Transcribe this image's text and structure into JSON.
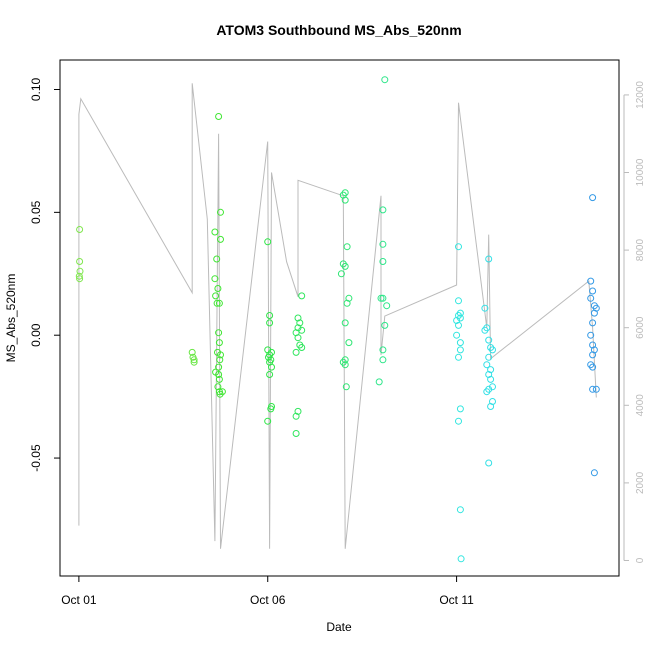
{
  "chart_data": {
    "type": "scatter",
    "title": "ATOM3 Southbound MS_Abs_520nm",
    "xlabel": "Date",
    "ylabel": "MS_Abs_520nm",
    "x_ticks": [
      {
        "label": "Oct 01",
        "value": 0
      },
      {
        "label": "Oct 06",
        "value": 5
      },
      {
        "label": "Oct 11",
        "value": 10
      }
    ],
    "y_ticks": [
      -0.05,
      0.0,
      0.05,
      0.1
    ],
    "y_tick_labels": [
      "-0.05",
      "0.00",
      "0.05",
      "0.10"
    ],
    "y2_ticks": [
      0,
      2000,
      4000,
      6000,
      8000,
      10000,
      12000
    ],
    "y2_tick_labels": [
      "0",
      "2000",
      "4000",
      "6000",
      "8000",
      "10000",
      "12000"
    ],
    "xlim": [
      -0.5,
      14.3
    ],
    "ylim": [
      -0.098,
      0.112
    ],
    "y2lim": [
      -400,
      12900
    ],
    "grid": false,
    "series": [
      {
        "color": "#7FE64D",
        "points": [
          [
            0.02,
            0.043
          ],
          [
            0.02,
            0.03
          ],
          [
            0.03,
            0.026
          ],
          [
            0.01,
            0.024
          ],
          [
            0.02,
            0.023
          ]
        ]
      },
      {
        "color": "#66E640",
        "points": [
          [
            3.0,
            -0.007
          ],
          [
            3.02,
            -0.009
          ],
          [
            3.05,
            -0.01
          ],
          [
            3.05,
            -0.011
          ]
        ]
      },
      {
        "color": "#40E633",
        "points": [
          [
            3.7,
            0.089
          ],
          [
            3.75,
            0.05
          ],
          [
            3.75,
            0.039
          ],
          [
            3.6,
            0.042
          ],
          [
            3.65,
            0.031
          ],
          [
            3.6,
            0.023
          ],
          [
            3.68,
            0.019
          ],
          [
            3.62,
            0.016
          ],
          [
            3.66,
            0.013
          ],
          [
            3.72,
            0.013
          ],
          [
            3.7,
            0.001
          ],
          [
            3.72,
            -0.003
          ],
          [
            3.67,
            -0.007
          ],
          [
            3.75,
            -0.008
          ],
          [
            3.73,
            -0.01
          ],
          [
            3.7,
            -0.013
          ],
          [
            3.62,
            -0.015
          ],
          [
            3.7,
            -0.016
          ],
          [
            3.72,
            -0.018
          ],
          [
            3.68,
            -0.021
          ],
          [
            3.72,
            -0.023
          ],
          [
            3.74,
            -0.024
          ],
          [
            3.8,
            -0.023
          ]
        ]
      },
      {
        "color": "#2EE647",
        "points": [
          [
            5.0,
            0.038
          ],
          [
            5.05,
            0.008
          ],
          [
            5.05,
            0.005
          ],
          [
            5.0,
            -0.006
          ],
          [
            5.1,
            -0.007
          ],
          [
            5.05,
            -0.008
          ],
          [
            5.02,
            -0.009
          ],
          [
            5.08,
            -0.01
          ],
          [
            5.05,
            -0.011
          ],
          [
            5.1,
            -0.013
          ],
          [
            5.05,
            -0.016
          ],
          [
            5.1,
            -0.029
          ],
          [
            5.08,
            -0.03
          ],
          [
            5.0,
            -0.035
          ]
        ]
      },
      {
        "color": "#2EE65C",
        "points": [
          [
            5.9,
            0.016
          ],
          [
            5.8,
            0.007
          ],
          [
            5.85,
            0.005
          ],
          [
            5.8,
            0.003
          ],
          [
            5.9,
            0.002
          ],
          [
            5.75,
            0.001
          ],
          [
            5.8,
            -0.001
          ],
          [
            5.85,
            -0.004
          ],
          [
            5.9,
            -0.005
          ],
          [
            5.75,
            -0.007
          ],
          [
            5.8,
            -0.031
          ],
          [
            5.75,
            -0.033
          ],
          [
            5.75,
            -0.04
          ]
        ]
      },
      {
        "color": "#2EE673",
        "points": [
          [
            7.05,
            0.058
          ],
          [
            7.0,
            0.057
          ],
          [
            7.05,
            0.055
          ],
          [
            7.1,
            0.036
          ],
          [
            7.0,
            0.029
          ],
          [
            7.05,
            0.028
          ],
          [
            6.95,
            0.025
          ],
          [
            7.15,
            0.015
          ],
          [
            7.1,
            0.013
          ],
          [
            7.05,
            0.005
          ],
          [
            7.15,
            -0.003
          ],
          [
            7.05,
            -0.01
          ],
          [
            7.0,
            -0.011
          ],
          [
            7.05,
            -0.012
          ],
          [
            7.08,
            -0.021
          ]
        ]
      },
      {
        "color": "#2EE68A",
        "points": [
          [
            8.1,
            0.104
          ],
          [
            8.05,
            0.051
          ],
          [
            8.05,
            0.037
          ],
          [
            8.05,
            0.03
          ],
          [
            8.0,
            0.015
          ],
          [
            8.05,
            0.015
          ],
          [
            8.15,
            0.012
          ],
          [
            8.1,
            0.004
          ],
          [
            8.05,
            -0.006
          ],
          [
            8.05,
            -0.01
          ],
          [
            7.95,
            -0.019
          ]
        ]
      },
      {
        "color": "#33E6E0",
        "points": [
          [
            10.05,
            0.036
          ],
          [
            10.05,
            0.014
          ],
          [
            10.1,
            0.009
          ],
          [
            10.05,
            0.008
          ],
          [
            10.1,
            0.007
          ],
          [
            10.0,
            0.006
          ],
          [
            10.05,
            0.004
          ],
          [
            10.0,
            0.0
          ],
          [
            10.1,
            -0.003
          ],
          [
            10.1,
            -0.006
          ],
          [
            10.05,
            -0.009
          ],
          [
            10.1,
            -0.03
          ],
          [
            10.05,
            -0.035
          ],
          [
            10.1,
            -0.071
          ],
          [
            10.12,
            -0.091
          ]
        ]
      },
      {
        "color": "#33E0E6",
        "points": [
          [
            10.85,
            0.031
          ],
          [
            10.75,
            0.011
          ],
          [
            10.8,
            0.003
          ],
          [
            10.75,
            0.002
          ],
          [
            10.85,
            -0.002
          ],
          [
            10.9,
            -0.005
          ],
          [
            10.95,
            -0.006
          ],
          [
            10.85,
            -0.009
          ],
          [
            10.8,
            -0.012
          ],
          [
            10.9,
            -0.014
          ],
          [
            10.85,
            -0.016
          ],
          [
            10.9,
            -0.018
          ],
          [
            10.95,
            -0.021
          ],
          [
            10.85,
            -0.022
          ],
          [
            10.8,
            -0.023
          ],
          [
            10.95,
            -0.027
          ],
          [
            10.9,
            -0.029
          ],
          [
            10.85,
            -0.052
          ]
        ]
      },
      {
        "color": "#3399E6",
        "points": [
          [
            13.6,
            0.056
          ],
          [
            13.55,
            0.022
          ],
          [
            13.6,
            0.018
          ],
          [
            13.55,
            0.015
          ],
          [
            13.65,
            0.012
          ],
          [
            13.7,
            0.011
          ],
          [
            13.65,
            0.009
          ],
          [
            13.6,
            0.005
          ],
          [
            13.55,
            0.0
          ],
          [
            13.6,
            -0.004
          ],
          [
            13.65,
            -0.006
          ],
          [
            13.6,
            -0.008
          ],
          [
            13.55,
            -0.012
          ],
          [
            13.6,
            -0.013
          ],
          [
            13.6,
            -0.022
          ],
          [
            13.7,
            -0.022
          ],
          [
            13.65,
            -0.056
          ]
        ]
      }
    ],
    "depth_line": {
      "color": "#BBBBBB",
      "x": [
        0.0,
        0.0,
        0.05,
        3.0,
        3.0,
        3.4,
        3.6,
        3.7,
        3.75,
        5.0,
        5.05,
        5.1,
        5.5,
        5.8,
        5.8,
        7.0,
        7.05,
        8.0,
        8.0,
        8.1,
        10.0,
        10.05,
        10.1,
        10.8,
        10.85,
        10.9,
        13.5,
        13.6,
        13.7
      ],
      "y": [
        900,
        11500,
        11900,
        6900,
        12300,
        8800,
        500,
        11000,
        300,
        10800,
        300,
        10000,
        7700,
        6800,
        9800,
        9400,
        300,
        9400,
        5300,
        6300,
        7100,
        11800,
        11400,
        6000,
        8400,
        5200,
        7200,
        6000,
        4200
      ]
    }
  }
}
